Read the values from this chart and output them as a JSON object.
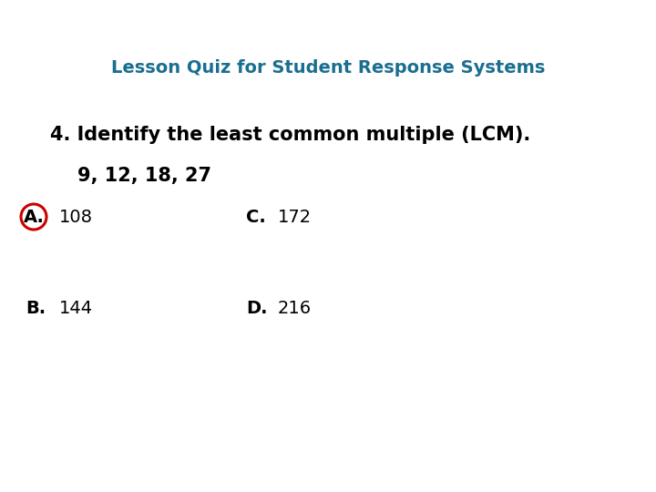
{
  "title": "Lesson Quiz for Student Response Systems",
  "title_color": "#1a6e8f",
  "title_fontsize": 14,
  "background_color": "#ffffff",
  "question": "4. Identify the least common multiple (LCM).",
  "subtext": "9, 12, 18, 27",
  "answer_A_label": "A.",
  "answer_A_value": "108",
  "answer_B_label": "B.",
  "answer_B_value": "144",
  "answer_C_label": "C.",
  "answer_C_value": "172",
  "answer_D_label": "D.",
  "answer_D_value": "216",
  "answer_fontsize": 14,
  "question_fontsize": 15,
  "subtext_fontsize": 15,
  "circle_color": "#cc0000",
  "text_color": "#000000",
  "fig_width": 7.2,
  "fig_height": 5.4,
  "dpi": 100
}
